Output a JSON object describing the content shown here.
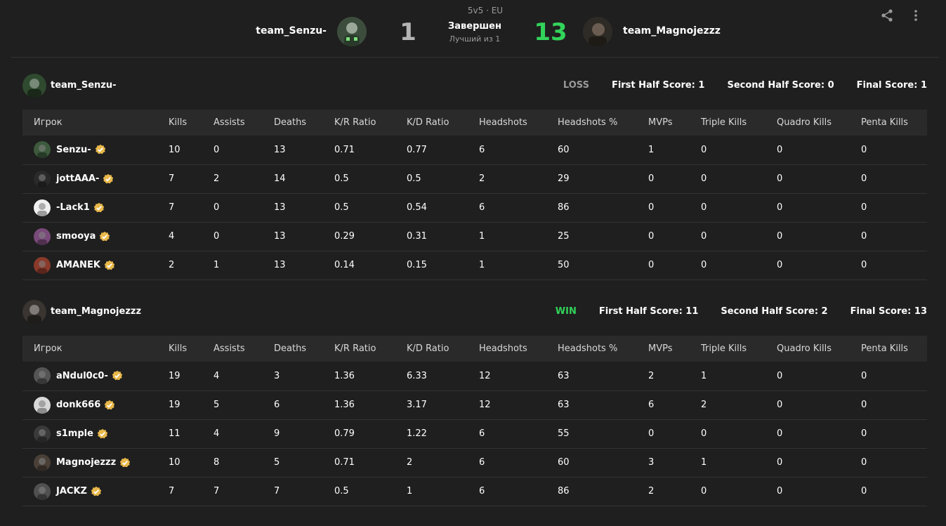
{
  "match": {
    "format": "5v5 · EU",
    "status": "Завершен",
    "best_of": "Лучший из 1",
    "team_left": {
      "name": "team_Senzu-",
      "score": "1"
    },
    "team_right": {
      "name": "team_Magnojezzz",
      "score": "13"
    }
  },
  "icons": {
    "share": "share-icon",
    "more": "more-vertical-icon",
    "verified": "verified-badge-icon"
  },
  "columns": [
    "Игрок",
    "Kills",
    "Assists",
    "Deaths",
    "K/R Ratio",
    "K/D Ratio",
    "Headshots",
    "Headshots %",
    "MVPs",
    "Triple Kills",
    "Quadro Kills",
    "Penta Kills"
  ],
  "teams": [
    {
      "name": "team_Senzu-",
      "result": "LOSS",
      "first_half": "First Half Score: 1",
      "second_half": "Second Half Score: 0",
      "final": "Final Score: 1",
      "avatar_color": "#2f4a2f",
      "players": [
        {
          "name": "Senzu-",
          "avatar_color": "#3d5a3d",
          "stats": [
            "10",
            "0",
            "13",
            "0.71",
            "0.77",
            "6",
            "60",
            "1",
            "0",
            "0",
            "0"
          ]
        },
        {
          "name": "jottAAA-",
          "avatar_color": "#2a2a2a",
          "stats": [
            "7",
            "2",
            "14",
            "0.5",
            "0.5",
            "2",
            "29",
            "0",
            "0",
            "0",
            "0"
          ]
        },
        {
          "name": "-Lack1",
          "avatar_color": "#f0f0f0",
          "stats": [
            "7",
            "0",
            "13",
            "0.5",
            "0.54",
            "6",
            "86",
            "0",
            "0",
            "0",
            "0"
          ]
        },
        {
          "name": "smooya",
          "avatar_color": "#7a4a7a",
          "stats": [
            "4",
            "0",
            "13",
            "0.29",
            "0.31",
            "1",
            "25",
            "0",
            "0",
            "0",
            "0"
          ]
        },
        {
          "name": "AMANEK",
          "avatar_color": "#8a3a2a",
          "stats": [
            "2",
            "1",
            "13",
            "0.14",
            "0.15",
            "1",
            "50",
            "0",
            "0",
            "0",
            "0"
          ]
        }
      ]
    },
    {
      "name": "team_Magnojezzz",
      "result": "WIN",
      "first_half": "First Half Score: 11",
      "second_half": "Second Half Score: 2",
      "final": "Final Score: 13",
      "avatar_color": "#3a3530",
      "players": [
        {
          "name": "aNdul0c0-",
          "avatar_color": "#555555",
          "stats": [
            "19",
            "4",
            "3",
            "1.36",
            "6.33",
            "12",
            "63",
            "2",
            "1",
            "0",
            "0"
          ]
        },
        {
          "name": "donk666",
          "avatar_color": "#d8d8d8",
          "stats": [
            "19",
            "5",
            "6",
            "1.36",
            "3.17",
            "12",
            "63",
            "6",
            "2",
            "0",
            "0"
          ]
        },
        {
          "name": "s1mple",
          "avatar_color": "#3a3a3a",
          "stats": [
            "11",
            "4",
            "9",
            "0.79",
            "1.22",
            "6",
            "55",
            "0",
            "0",
            "0",
            "0"
          ]
        },
        {
          "name": "Magnojezzz",
          "avatar_color": "#4a4038",
          "stats": [
            "10",
            "8",
            "5",
            "0.71",
            "2",
            "6",
            "60",
            "3",
            "1",
            "0",
            "0"
          ]
        },
        {
          "name": "JACKZ",
          "avatar_color": "#505050",
          "stats": [
            "7",
            "7",
            "7",
            "0.5",
            "1",
            "6",
            "86",
            "2",
            "0",
            "0",
            "0"
          ]
        }
      ]
    }
  ],
  "colors": {
    "win": "#32d35a",
    "loss": "#9a9a9a",
    "badge": "#e8b84a",
    "background": "#1f1f1f"
  }
}
